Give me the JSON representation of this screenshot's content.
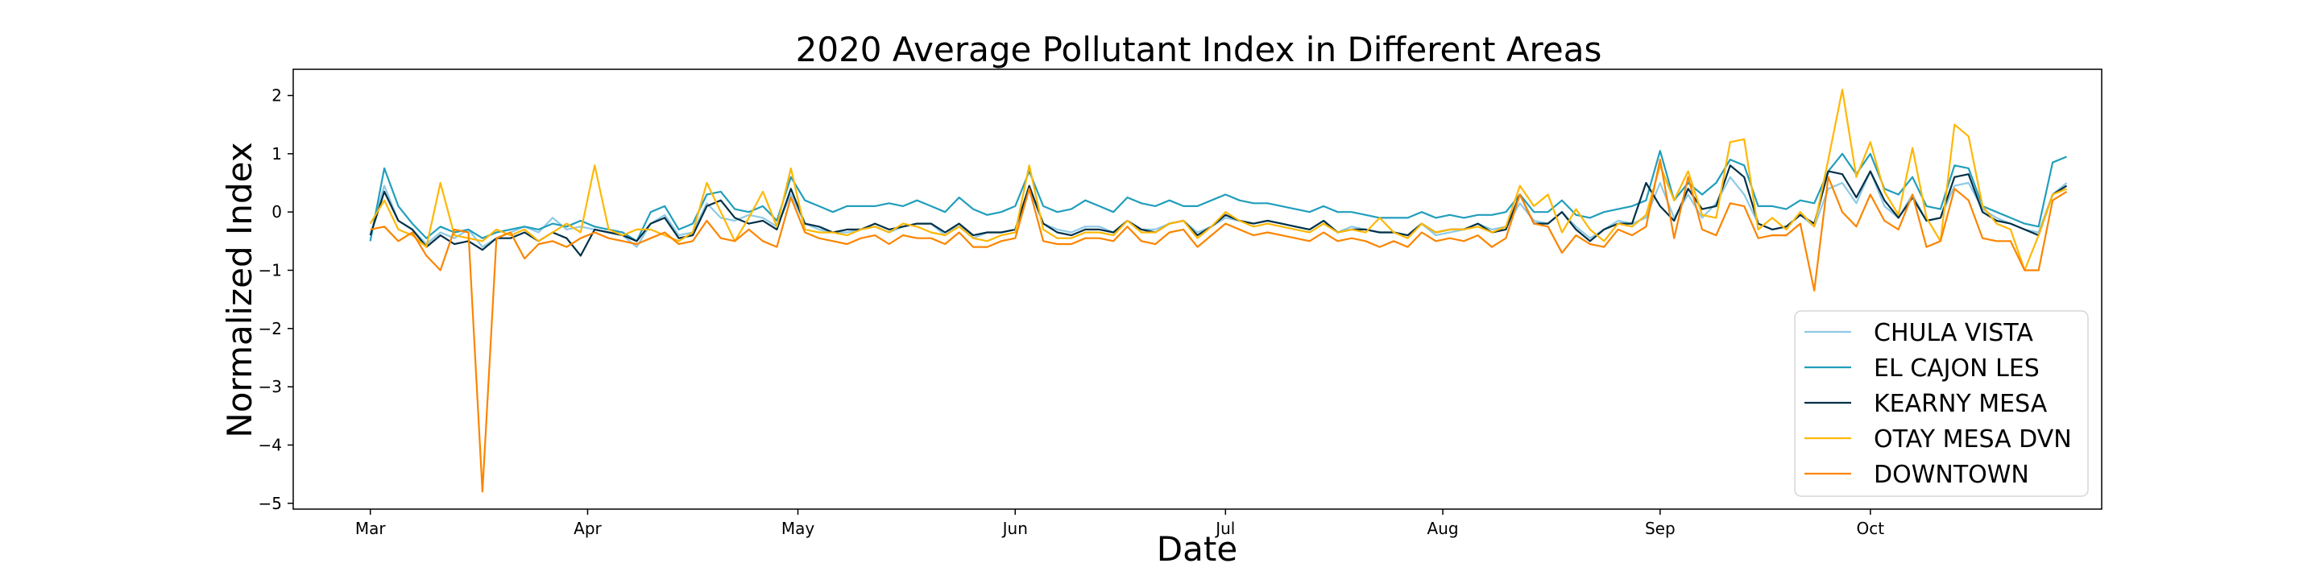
{
  "chart_data": {
    "type": "line",
    "title": "2020 Average Pollutant Index in Different Areas",
    "xlabel": "Date",
    "ylabel": "Normalized Index",
    "x_ticks": [
      "Mar",
      "Apr",
      "May",
      "Jun",
      "Jul",
      "Aug",
      "Sep",
      "Oct"
    ],
    "x_tick_dates": [
      "2020-03-01",
      "2020-04-01",
      "2020-05-01",
      "2020-06-01",
      "2020-07-01",
      "2020-08-01",
      "2020-09-01",
      "2020-10-01"
    ],
    "y_ticks": [
      "2",
      "1",
      "0",
      "−1",
      "−2",
      "−3",
      "−4",
      "−5"
    ],
    "y_tick_values": [
      2,
      1,
      0,
      -1,
      -2,
      -3,
      -4,
      -5
    ],
    "xlim": [
      "2020-02-19",
      "2020-11-03"
    ],
    "ylim": [
      -5.1,
      2.45
    ],
    "grid": false,
    "legend_position": "bottom-right",
    "x_dates": [
      "2020-03-01",
      "2020-03-03",
      "2020-03-05",
      "2020-03-07",
      "2020-03-09",
      "2020-03-11",
      "2020-03-13",
      "2020-03-15",
      "2020-03-17",
      "2020-03-19",
      "2020-03-21",
      "2020-03-23",
      "2020-03-25",
      "2020-03-27",
      "2020-03-29",
      "2020-03-31",
      "2020-04-02",
      "2020-04-04",
      "2020-04-06",
      "2020-04-08",
      "2020-04-10",
      "2020-04-12",
      "2020-04-14",
      "2020-04-16",
      "2020-04-18",
      "2020-04-20",
      "2020-04-22",
      "2020-04-24",
      "2020-04-26",
      "2020-04-28",
      "2020-04-30",
      "2020-05-02",
      "2020-05-04",
      "2020-05-06",
      "2020-05-08",
      "2020-05-10",
      "2020-05-12",
      "2020-05-14",
      "2020-05-16",
      "2020-05-18",
      "2020-05-20",
      "2020-05-22",
      "2020-05-24",
      "2020-05-26",
      "2020-05-28",
      "2020-05-30",
      "2020-06-01",
      "2020-06-03",
      "2020-06-05",
      "2020-06-07",
      "2020-06-09",
      "2020-06-11",
      "2020-06-13",
      "2020-06-15",
      "2020-06-17",
      "2020-06-19",
      "2020-06-21",
      "2020-06-23",
      "2020-06-25",
      "2020-06-27",
      "2020-06-29",
      "2020-07-01",
      "2020-07-03",
      "2020-07-05",
      "2020-07-07",
      "2020-07-09",
      "2020-07-11",
      "2020-07-13",
      "2020-07-15",
      "2020-07-17",
      "2020-07-19",
      "2020-07-21",
      "2020-07-23",
      "2020-07-25",
      "2020-07-27",
      "2020-07-29",
      "2020-07-31",
      "2020-08-02",
      "2020-08-04",
      "2020-08-06",
      "2020-08-08",
      "2020-08-10",
      "2020-08-12",
      "2020-08-14",
      "2020-08-16",
      "2020-08-18",
      "2020-08-20",
      "2020-08-22",
      "2020-08-24",
      "2020-08-26",
      "2020-08-28",
      "2020-08-30",
      "2020-09-01",
      "2020-09-03",
      "2020-09-05",
      "2020-09-07",
      "2020-09-09",
      "2020-09-11",
      "2020-09-13",
      "2020-09-15",
      "2020-09-17",
      "2020-09-19",
      "2020-09-21",
      "2020-09-23",
      "2020-09-25",
      "2020-09-27",
      "2020-09-29",
      "2020-10-01",
      "2020-10-03",
      "2020-10-05",
      "2020-10-07",
      "2020-10-09",
      "2020-10-11",
      "2020-10-13",
      "2020-10-15",
      "2020-10-17",
      "2020-10-19",
      "2020-10-21",
      "2020-10-23",
      "2020-10-25",
      "2020-10-27",
      "2020-10-29"
    ],
    "series": [
      {
        "name": "CHULA VISTA",
        "color": "#8ecae6",
        "values": [
          -0.4,
          0.45,
          -0.15,
          -0.3,
          -0.55,
          -0.35,
          -0.45,
          -0.3,
          -0.6,
          -0.45,
          -0.35,
          -0.25,
          -0.35,
          -0.1,
          -0.3,
          -0.25,
          -0.3,
          -0.35,
          -0.4,
          -0.6,
          -0.2,
          -0.05,
          -0.4,
          -0.35,
          0.15,
          -0.1,
          -0.15,
          -0.05,
          -0.1,
          -0.25,
          0.3,
          -0.2,
          -0.3,
          -0.35,
          -0.35,
          -0.3,
          -0.25,
          -0.35,
          -0.25,
          -0.2,
          -0.2,
          -0.4,
          -0.2,
          -0.45,
          -0.35,
          -0.35,
          -0.3,
          0.4,
          -0.2,
          -0.3,
          -0.35,
          -0.25,
          -0.25,
          -0.35,
          -0.15,
          -0.3,
          -0.3,
          -0.2,
          -0.15,
          -0.35,
          -0.25,
          -0.1,
          -0.15,
          -0.2,
          -0.15,
          -0.2,
          -0.25,
          -0.3,
          -0.15,
          -0.35,
          -0.25,
          -0.3,
          -0.35,
          -0.35,
          -0.4,
          -0.2,
          -0.4,
          -0.35,
          -0.3,
          -0.2,
          -0.3,
          -0.25,
          0.15,
          -0.15,
          -0.2,
          0.0,
          -0.25,
          -0.45,
          -0.3,
          -0.15,
          -0.2,
          -0.1,
          0.5,
          -0.1,
          0.3,
          -0.1,
          0.15,
          0.6,
          0.3,
          -0.2,
          -0.3,
          -0.25,
          -0.05,
          -0.25,
          0.4,
          0.5,
          0.15,
          0.7,
          0.1,
          -0.1,
          0.3,
          -0.15,
          -0.1,
          0.45,
          0.5,
          0.05,
          -0.1,
          -0.2,
          -0.3,
          -0.35,
          0.3,
          0.5
        ]
      },
      {
        "name": "EL CAJON LES",
        "color": "#219ebc",
        "values": [
          -0.5,
          0.75,
          0.1,
          -0.2,
          -0.45,
          -0.25,
          -0.35,
          -0.3,
          -0.45,
          -0.35,
          -0.3,
          -0.25,
          -0.3,
          -0.2,
          -0.25,
          -0.15,
          -0.25,
          -0.3,
          -0.35,
          -0.5,
          0.0,
          0.1,
          -0.3,
          -0.2,
          0.3,
          0.35,
          0.05,
          0.0,
          0.1,
          -0.15,
          0.6,
          0.2,
          0.1,
          0.0,
          0.1,
          0.1,
          0.1,
          0.15,
          0.1,
          0.2,
          0.1,
          0.0,
          0.25,
          0.05,
          -0.05,
          0.0,
          0.1,
          0.7,
          0.1,
          0.0,
          0.05,
          0.2,
          0.1,
          0.0,
          0.25,
          0.15,
          0.1,
          0.2,
          0.1,
          0.1,
          0.2,
          0.3,
          0.2,
          0.15,
          0.15,
          0.1,
          0.05,
          0.0,
          0.1,
          0.0,
          0.0,
          -0.05,
          -0.1,
          -0.1,
          -0.1,
          0.0,
          -0.1,
          -0.05,
          -0.1,
          -0.05,
          -0.05,
          0.0,
          0.3,
          0.0,
          0.0,
          0.2,
          -0.05,
          -0.1,
          0.0,
          0.05,
          0.1,
          0.2,
          1.05,
          0.2,
          0.5,
          0.3,
          0.5,
          0.9,
          0.8,
          0.1,
          0.1,
          0.05,
          0.2,
          0.15,
          0.7,
          1.0,
          0.65,
          1.0,
          0.4,
          0.3,
          0.6,
          0.1,
          0.05,
          0.8,
          0.75,
          0.1,
          0.0,
          -0.1,
          -0.2,
          -0.25,
          0.85,
          0.95
        ]
      },
      {
        "name": "KEARNY MESA",
        "color": "#023047",
        "values": [
          -0.4,
          0.35,
          -0.15,
          -0.3,
          -0.6,
          -0.4,
          -0.55,
          -0.5,
          -0.65,
          -0.45,
          -0.45,
          -0.35,
          -0.5,
          -0.35,
          -0.45,
          -0.75,
          -0.3,
          -0.35,
          -0.4,
          -0.5,
          -0.2,
          -0.1,
          -0.45,
          -0.4,
          0.1,
          0.2,
          -0.1,
          -0.2,
          -0.15,
          -0.3,
          0.4,
          -0.2,
          -0.25,
          -0.35,
          -0.3,
          -0.3,
          -0.2,
          -0.3,
          -0.25,
          -0.2,
          -0.2,
          -0.35,
          -0.2,
          -0.4,
          -0.35,
          -0.35,
          -0.3,
          0.45,
          -0.2,
          -0.35,
          -0.4,
          -0.3,
          -0.3,
          -0.35,
          -0.15,
          -0.3,
          -0.35,
          -0.2,
          -0.15,
          -0.4,
          -0.25,
          -0.05,
          -0.15,
          -0.2,
          -0.15,
          -0.2,
          -0.25,
          -0.3,
          -0.15,
          -0.35,
          -0.3,
          -0.3,
          -0.35,
          -0.35,
          -0.4,
          -0.2,
          -0.35,
          -0.3,
          -0.3,
          -0.2,
          -0.35,
          -0.3,
          0.3,
          -0.2,
          -0.2,
          0.0,
          -0.3,
          -0.5,
          -0.3,
          -0.2,
          -0.2,
          0.5,
          0.1,
          -0.15,
          0.4,
          0.05,
          0.1,
          0.8,
          0.6,
          -0.2,
          -0.3,
          -0.25,
          -0.05,
          -0.2,
          0.7,
          0.65,
          0.25,
          0.7,
          0.2,
          -0.1,
          0.25,
          -0.15,
          -0.1,
          0.6,
          0.65,
          0.0,
          -0.15,
          -0.2,
          -0.3,
          -0.4,
          0.3,
          0.45
        ]
      },
      {
        "name": "OTAY MESA DVN",
        "color": "#ffb703",
        "values": [
          -0.2,
          0.2,
          -0.3,
          -0.4,
          -0.6,
          0.5,
          -0.4,
          -0.45,
          -0.5,
          -0.3,
          -0.4,
          -0.3,
          -0.5,
          -0.35,
          -0.2,
          -0.35,
          0.8,
          -0.3,
          -0.4,
          -0.3,
          -0.3,
          -0.4,
          -0.5,
          -0.35,
          0.5,
          0.0,
          -0.5,
          -0.1,
          0.35,
          -0.25,
          0.75,
          -0.3,
          -0.35,
          -0.35,
          -0.4,
          -0.3,
          -0.25,
          -0.35,
          -0.2,
          -0.25,
          -0.35,
          -0.4,
          -0.25,
          -0.45,
          -0.5,
          -0.4,
          -0.35,
          0.8,
          -0.3,
          -0.45,
          -0.45,
          -0.35,
          -0.35,
          -0.4,
          -0.15,
          -0.35,
          -0.35,
          -0.2,
          -0.15,
          -0.45,
          -0.25,
          0.0,
          -0.15,
          -0.25,
          -0.2,
          -0.25,
          -0.3,
          -0.35,
          -0.2,
          -0.35,
          -0.3,
          -0.35,
          -0.1,
          -0.35,
          -0.45,
          -0.2,
          -0.35,
          -0.3,
          -0.3,
          -0.25,
          -0.35,
          -0.25,
          0.45,
          0.1,
          0.3,
          -0.35,
          0.05,
          -0.3,
          -0.5,
          -0.2,
          -0.25,
          -0.05,
          0.8,
          0.2,
          0.7,
          -0.05,
          -0.1,
          1.2,
          1.25,
          -0.3,
          -0.1,
          -0.3,
          0.0,
          -0.25,
          0.9,
          2.1,
          0.6,
          1.2,
          0.35,
          -0.05,
          1.1,
          -0.1,
          -0.5,
          1.5,
          1.3,
          0.1,
          -0.2,
          -0.3,
          -1.0,
          -0.4,
          0.3,
          0.4
        ]
      },
      {
        "name": "DOWNTOWN",
        "color": "#fb8500",
        "values": [
          -0.3,
          -0.25,
          -0.5,
          -0.35,
          -0.75,
          -1.0,
          -0.3,
          -0.35,
          -4.8,
          -0.45,
          -0.35,
          -0.8,
          -0.55,
          -0.5,
          -0.6,
          -0.45,
          -0.35,
          -0.45,
          -0.5,
          -0.55,
          -0.45,
          -0.35,
          -0.55,
          -0.5,
          -0.15,
          -0.45,
          -0.5,
          -0.3,
          -0.5,
          -0.6,
          0.25,
          -0.35,
          -0.45,
          -0.5,
          -0.55,
          -0.45,
          -0.4,
          -0.55,
          -0.4,
          -0.45,
          -0.45,
          -0.55,
          -0.35,
          -0.6,
          -0.6,
          -0.5,
          -0.45,
          0.4,
          -0.5,
          -0.55,
          -0.55,
          -0.45,
          -0.45,
          -0.5,
          -0.25,
          -0.5,
          -0.55,
          -0.35,
          -0.3,
          -0.6,
          -0.4,
          -0.2,
          -0.3,
          -0.4,
          -0.35,
          -0.4,
          -0.45,
          -0.5,
          -0.35,
          -0.5,
          -0.45,
          -0.5,
          -0.6,
          -0.5,
          -0.6,
          -0.35,
          -0.5,
          -0.45,
          -0.5,
          -0.4,
          -0.6,
          -0.45,
          0.3,
          -0.2,
          -0.25,
          -0.7,
          -0.4,
          -0.55,
          -0.6,
          -0.3,
          -0.4,
          -0.25,
          0.9,
          -0.45,
          0.6,
          -0.3,
          -0.4,
          0.15,
          0.1,
          -0.45,
          -0.4,
          -0.4,
          -0.2,
          -1.35,
          0.6,
          0.0,
          -0.25,
          0.3,
          -0.15,
          -0.3,
          0.3,
          -0.6,
          -0.5,
          0.4,
          0.2,
          -0.45,
          -0.5,
          -0.5,
          -1.0,
          -1.0,
          0.2,
          0.35
        ]
      }
    ]
  }
}
